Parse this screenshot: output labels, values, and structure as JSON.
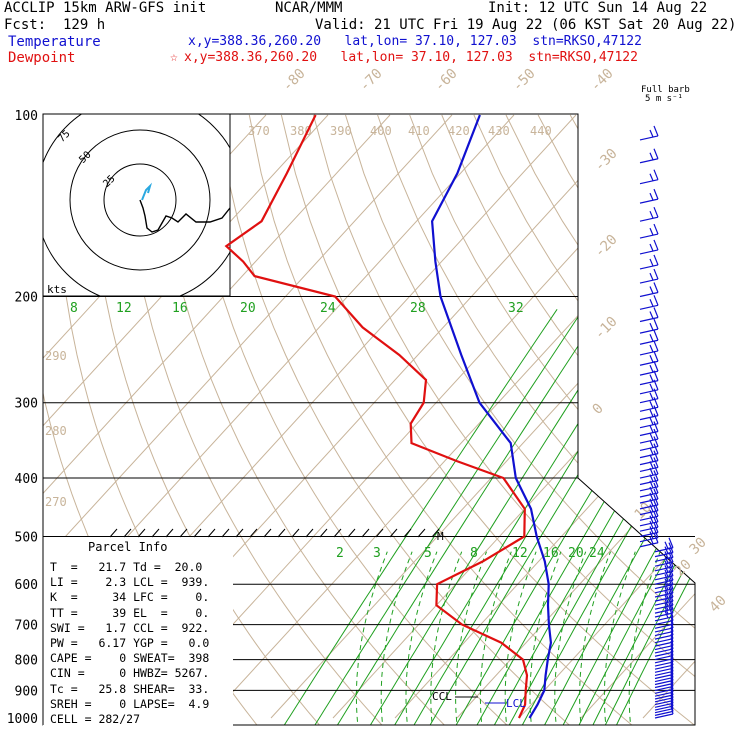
{
  "header": {
    "model": "ACCLIP 15km ARW-GFS init",
    "fcst": "Fcst:  129 h",
    "center": "NCAR/MMM",
    "init": "Init: 12 UTC Sun 14 Aug 22",
    "valid": "Valid: 21 UTC Fri 19 Aug 22 (06 KST Sat 20 Aug 22)",
    "temp_label": "Temperature",
    "temp_loc": "x,y=388.36,260.20   lat,lon= 37.10, 127.03  stn=RKSO,47122",
    "dew_label": "Dewpoint",
    "dew_loc": "x,y=388.36,260.20   lat,lon= 37.10, 127.03  stn=RKSO,47122",
    "dew_marker": "☆",
    "barb_title1": "Full barb",
    "barb_title2": "5 m s⁻¹"
  },
  "colors": {
    "temperature": "#1010d0",
    "dewpoint": "#e01010",
    "mixing_ratio": "#20a020",
    "isotherm": "#c8b49a",
    "barb": "#1010d0"
  },
  "parcel": {
    "title": "Parcel Info",
    "rows": [
      "T  =   21.7 Td =  20.0",
      "LI =    2.3 LCL =  939.",
      "K  =     34 LFC =    0.",
      "TT =     39 EL  =    0.",
      "SWI =   1.7 CCL =  922.",
      "PW =   6.17 YGP =   0.0",
      "CAPE =    0 SWEAT=  398",
      "CIN =     0 HWBZ= 5267.",
      "Tc =   25.8 SHEAR=  33.",
      "SREH =    0 LAPSE=  4.9",
      "CELL = 282/27"
    ]
  },
  "hodograph": {
    "units": "kts",
    "rings": [
      "25",
      "50",
      "75"
    ]
  },
  "markers": {
    "ccl": "CCL",
    "lcl": "LCL",
    "m": "M"
  },
  "chart_data": {
    "type": "line",
    "title": "",
    "pressure_ticks": [
      "100",
      "200",
      "300",
      "400",
      "500",
      "600",
      "700",
      "800",
      "900",
      "1000"
    ],
    "isotherm_labels": [
      "-80",
      "-70",
      "-60",
      "-50",
      "-40",
      "-30",
      "-20",
      "-10",
      "0",
      "10",
      "20",
      "30",
      "40"
    ],
    "theta_labels": [
      "370",
      "380",
      "390",
      "400",
      "410",
      "420",
      "430",
      "440",
      "290",
      "280",
      "270"
    ],
    "mixing_ratio_labels_upper": [
      "8",
      "12",
      "16",
      "20",
      "24",
      "28",
      "32"
    ],
    "mixing_ratio_labels_lower": [
      "2",
      "3",
      "5",
      "8",
      "12",
      "16",
      "20",
      "24"
    ],
    "series": [
      {
        "name": "Temperature",
        "points": [
          [
            100,
            -75.5
          ],
          [
            125,
            -70.5
          ],
          [
            150,
            -67.5
          ],
          [
            175,
            -61
          ],
          [
            200,
            -55
          ],
          [
            250,
            -43
          ],
          [
            300,
            -33
          ],
          [
            350,
            -22
          ],
          [
            400,
            -16
          ],
          [
            450,
            -9
          ],
          [
            500,
            -4
          ],
          [
            550,
            1
          ],
          [
            600,
            5
          ],
          [
            650,
            8
          ],
          [
            700,
            11
          ],
          [
            750,
            14
          ],
          [
            800,
            16
          ],
          [
            850,
            18
          ],
          [
            900,
            20
          ],
          [
            950,
            21
          ],
          [
            1000,
            21.7
          ]
        ]
      },
      {
        "name": "Dewpoint",
        "points": [
          [
            100,
            -102
          ],
          [
            125,
            -98
          ],
          [
            150,
            -95
          ],
          [
            165,
            -97
          ],
          [
            175,
            -92
          ],
          [
            185,
            -88
          ],
          [
            200,
            -72
          ],
          [
            225,
            -63
          ],
          [
            250,
            -53
          ],
          [
            275,
            -45
          ],
          [
            300,
            -42
          ],
          [
            325,
            -41
          ],
          [
            350,
            -38
          ],
          [
            375,
            -28
          ],
          [
            400,
            -18
          ],
          [
            450,
            -10
          ],
          [
            500,
            -6
          ],
          [
            550,
            -9
          ],
          [
            600,
            -13
          ],
          [
            650,
            -10
          ],
          [
            700,
            -3
          ],
          [
            750,
            6
          ],
          [
            800,
            12
          ],
          [
            850,
            15
          ],
          [
            900,
            17
          ],
          [
            950,
            19
          ],
          [
            1000,
            20
          ]
        ]
      }
    ],
    "ylim": [
      100,
      1000
    ],
    "y_scale": "log"
  }
}
